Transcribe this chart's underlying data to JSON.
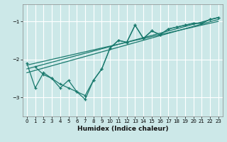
{
  "xlabel": "Humidex (Indice chaleur)",
  "bg_color": "#cce8e8",
  "line_color": "#1a7a6e",
  "grid_color": "#ffffff",
  "xlim": [
    -0.5,
    23.5
  ],
  "ylim": [
    -3.5,
    -0.55
  ],
  "yticks": [
    -3,
    -2,
    -1
  ],
  "xticks": [
    0,
    1,
    2,
    3,
    4,
    5,
    6,
    7,
    8,
    9,
    10,
    11,
    12,
    13,
    14,
    15,
    16,
    17,
    18,
    19,
    20,
    21,
    22,
    23
  ],
  "jagged1_x": [
    0,
    1,
    2,
    3,
    4,
    5,
    6,
    7,
    8,
    9,
    10,
    11,
    12,
    13,
    14,
    15,
    16,
    17,
    18,
    19,
    20,
    21,
    22,
    23
  ],
  "jagged1_y": [
    -2.1,
    -2.75,
    -2.35,
    -2.5,
    -2.75,
    -2.55,
    -2.85,
    -3.05,
    -2.55,
    -2.25,
    -1.7,
    -1.5,
    -1.55,
    -1.1,
    -1.45,
    -1.25,
    -1.35,
    -1.2,
    -1.15,
    -1.1,
    -1.05,
    -1.05,
    -0.95,
    -0.9
  ],
  "jagged2_x": [
    1,
    2,
    3,
    4,
    5,
    6,
    7,
    8,
    9,
    10,
    11,
    12,
    13,
    14,
    15,
    16,
    17,
    18,
    19,
    20,
    21,
    22,
    23
  ],
  "jagged2_y": [
    -2.2,
    -2.4,
    -2.5,
    -2.65,
    -2.75,
    -2.85,
    -2.95,
    -2.55,
    -2.25,
    -1.7,
    -1.5,
    -1.55,
    -1.1,
    -1.45,
    -1.25,
    -1.35,
    -1.2,
    -1.15,
    -1.1,
    -1.05,
    -1.05,
    -0.95,
    -0.9
  ],
  "line3_x": [
    0,
    23
  ],
  "line3_y": [
    -2.25,
    -0.9
  ],
  "line4_x": [
    0,
    23
  ],
  "line4_y": [
    -2.35,
    -0.95
  ],
  "line5_x": [
    0,
    23
  ],
  "line5_y": [
    -2.15,
    -1.0
  ]
}
